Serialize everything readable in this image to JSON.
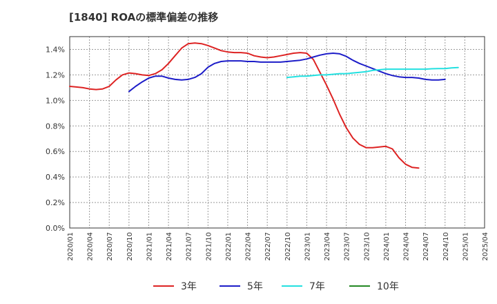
{
  "chart_data": {
    "type": "line",
    "title": "[1840]  ROAの標準偏差の推移",
    "xlabel": "",
    "ylabel": "",
    "ylim": [
      0,
      1.5
    ],
    "yticks": [
      "0.0%",
      "0.2%",
      "0.4%",
      "0.6%",
      "0.8%",
      "1.0%",
      "1.2%",
      "1.4%"
    ],
    "ytick_values": [
      0,
      0.2,
      0.4,
      0.6,
      0.8,
      1.0,
      1.2,
      1.4
    ],
    "xticks": [
      "2020/01",
      "2020/04",
      "2020/07",
      "2020/10",
      "2021/01",
      "2021/04",
      "2021/07",
      "2021/10",
      "2022/01",
      "2022/04",
      "2022/07",
      "2022/10",
      "2023/01",
      "2023/04",
      "2023/07",
      "2023/10",
      "2024/01",
      "2024/04",
      "2024/07",
      "2024/10",
      "2025/01",
      "2025/04"
    ],
    "grid": true,
    "legend_position": "bottom",
    "series": [
      {
        "name": "3年",
        "color": "#dd2222",
        "start": "2020/01",
        "values": [
          1.11,
          1.105,
          1.1,
          1.09,
          1.085,
          1.09,
          1.11,
          1.16,
          1.2,
          1.215,
          1.21,
          1.2,
          1.195,
          1.21,
          1.24,
          1.29,
          1.35,
          1.41,
          1.445,
          1.45,
          1.445,
          1.43,
          1.41,
          1.39,
          1.38,
          1.375,
          1.375,
          1.37,
          1.35,
          1.34,
          1.335,
          1.34,
          1.35,
          1.36,
          1.37,
          1.375,
          1.37,
          1.32,
          1.22,
          1.12,
          1.01,
          0.89,
          0.785,
          0.705,
          0.655,
          0.63,
          0.63,
          0.635,
          0.64,
          0.62,
          0.55,
          0.5,
          0.475,
          0.47
        ]
      },
      {
        "name": "5年",
        "color": "#1c1cc8",
        "start": "2020/10",
        "values": [
          1.07,
          1.11,
          1.145,
          1.175,
          1.19,
          1.19,
          1.175,
          1.165,
          1.16,
          1.165,
          1.18,
          1.21,
          1.26,
          1.29,
          1.305,
          1.31,
          1.31,
          1.31,
          1.305,
          1.305,
          1.3,
          1.3,
          1.3,
          1.3,
          1.305,
          1.31,
          1.315,
          1.325,
          1.34,
          1.355,
          1.365,
          1.37,
          1.365,
          1.345,
          1.315,
          1.29,
          1.27,
          1.25,
          1.23,
          1.21,
          1.195,
          1.185,
          1.18,
          1.18,
          1.175,
          1.165,
          1.16,
          1.16,
          1.165
        ]
      },
      {
        "name": "7年",
        "color": "#22e0e0",
        "start": "2022/10",
        "values": [
          1.18,
          1.185,
          1.19,
          1.19,
          1.195,
          1.2,
          1.2,
          1.205,
          1.21,
          1.21,
          1.215,
          1.22,
          1.225,
          1.235,
          1.24,
          1.245,
          1.245,
          1.245,
          1.245,
          1.245,
          1.245,
          1.245,
          1.248,
          1.25,
          1.25,
          1.255,
          1.258
        ]
      },
      {
        "name": "10年",
        "color": "#228822",
        "start": "",
        "values": []
      }
    ]
  }
}
